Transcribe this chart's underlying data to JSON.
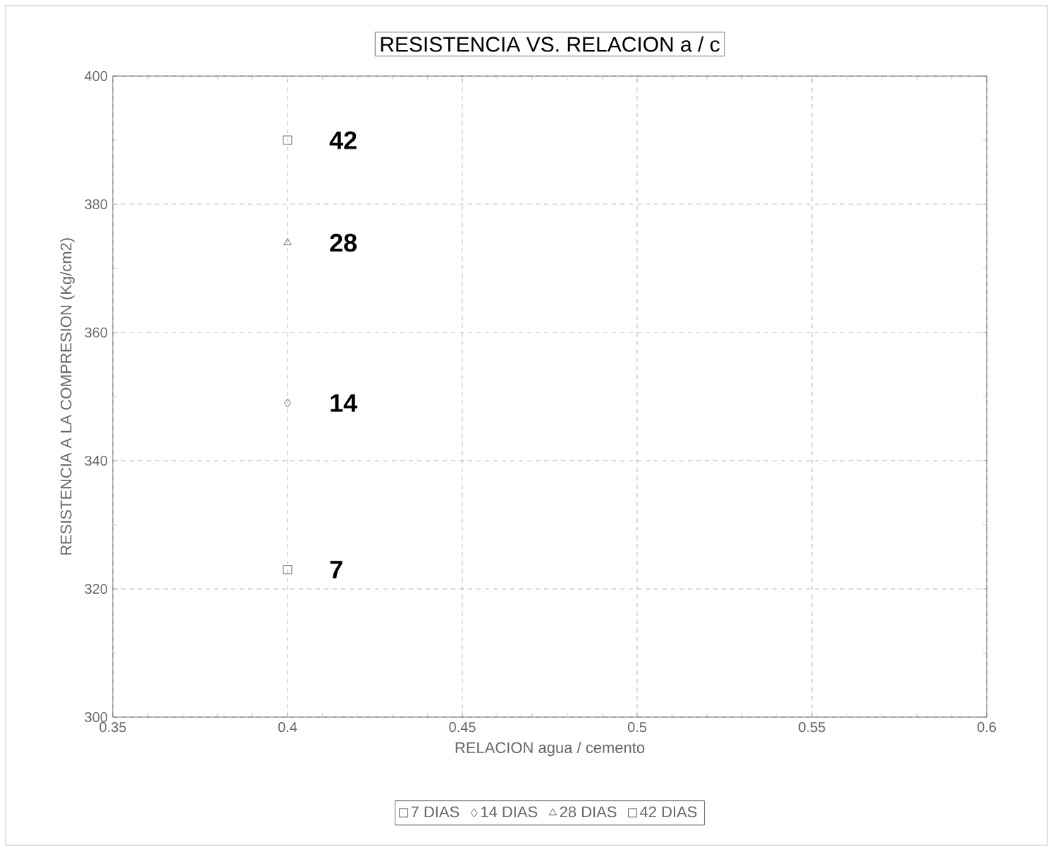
{
  "chart_data": {
    "type": "scatter",
    "title": "RESISTENCIA VS. RELACION a / c",
    "xlabel": "RELACION  agua / cemento",
    "ylabel": "RESISTENCIA A LA COMPRESION (Kg/cm2)",
    "x": [
      0.4
    ],
    "series": [
      {
        "name": "7 DIAS",
        "color": "#444444",
        "marker": "square",
        "values": [
          323
        ]
      },
      {
        "name": "14 DIAS",
        "color": "#444444",
        "marker": "diamond",
        "values": [
          349
        ]
      },
      {
        "name": "28 DIAS",
        "color": "#444444",
        "marker": "triangle",
        "values": [
          374
        ]
      },
      {
        "name": "42 DIAS",
        "color": "#444444",
        "marker": "square",
        "values": [
          390
        ]
      }
    ],
    "xlim": [
      0.35,
      0.6
    ],
    "ylim": [
      300,
      400
    ],
    "xticks": [
      0.35,
      0.4,
      0.45,
      0.5,
      0.55,
      0.6
    ],
    "yticks": [
      300,
      320,
      340,
      360,
      380,
      400
    ],
    "grid": true,
    "legend": "bottom",
    "annotations": [
      "7",
      "14",
      "28",
      "42"
    ]
  }
}
